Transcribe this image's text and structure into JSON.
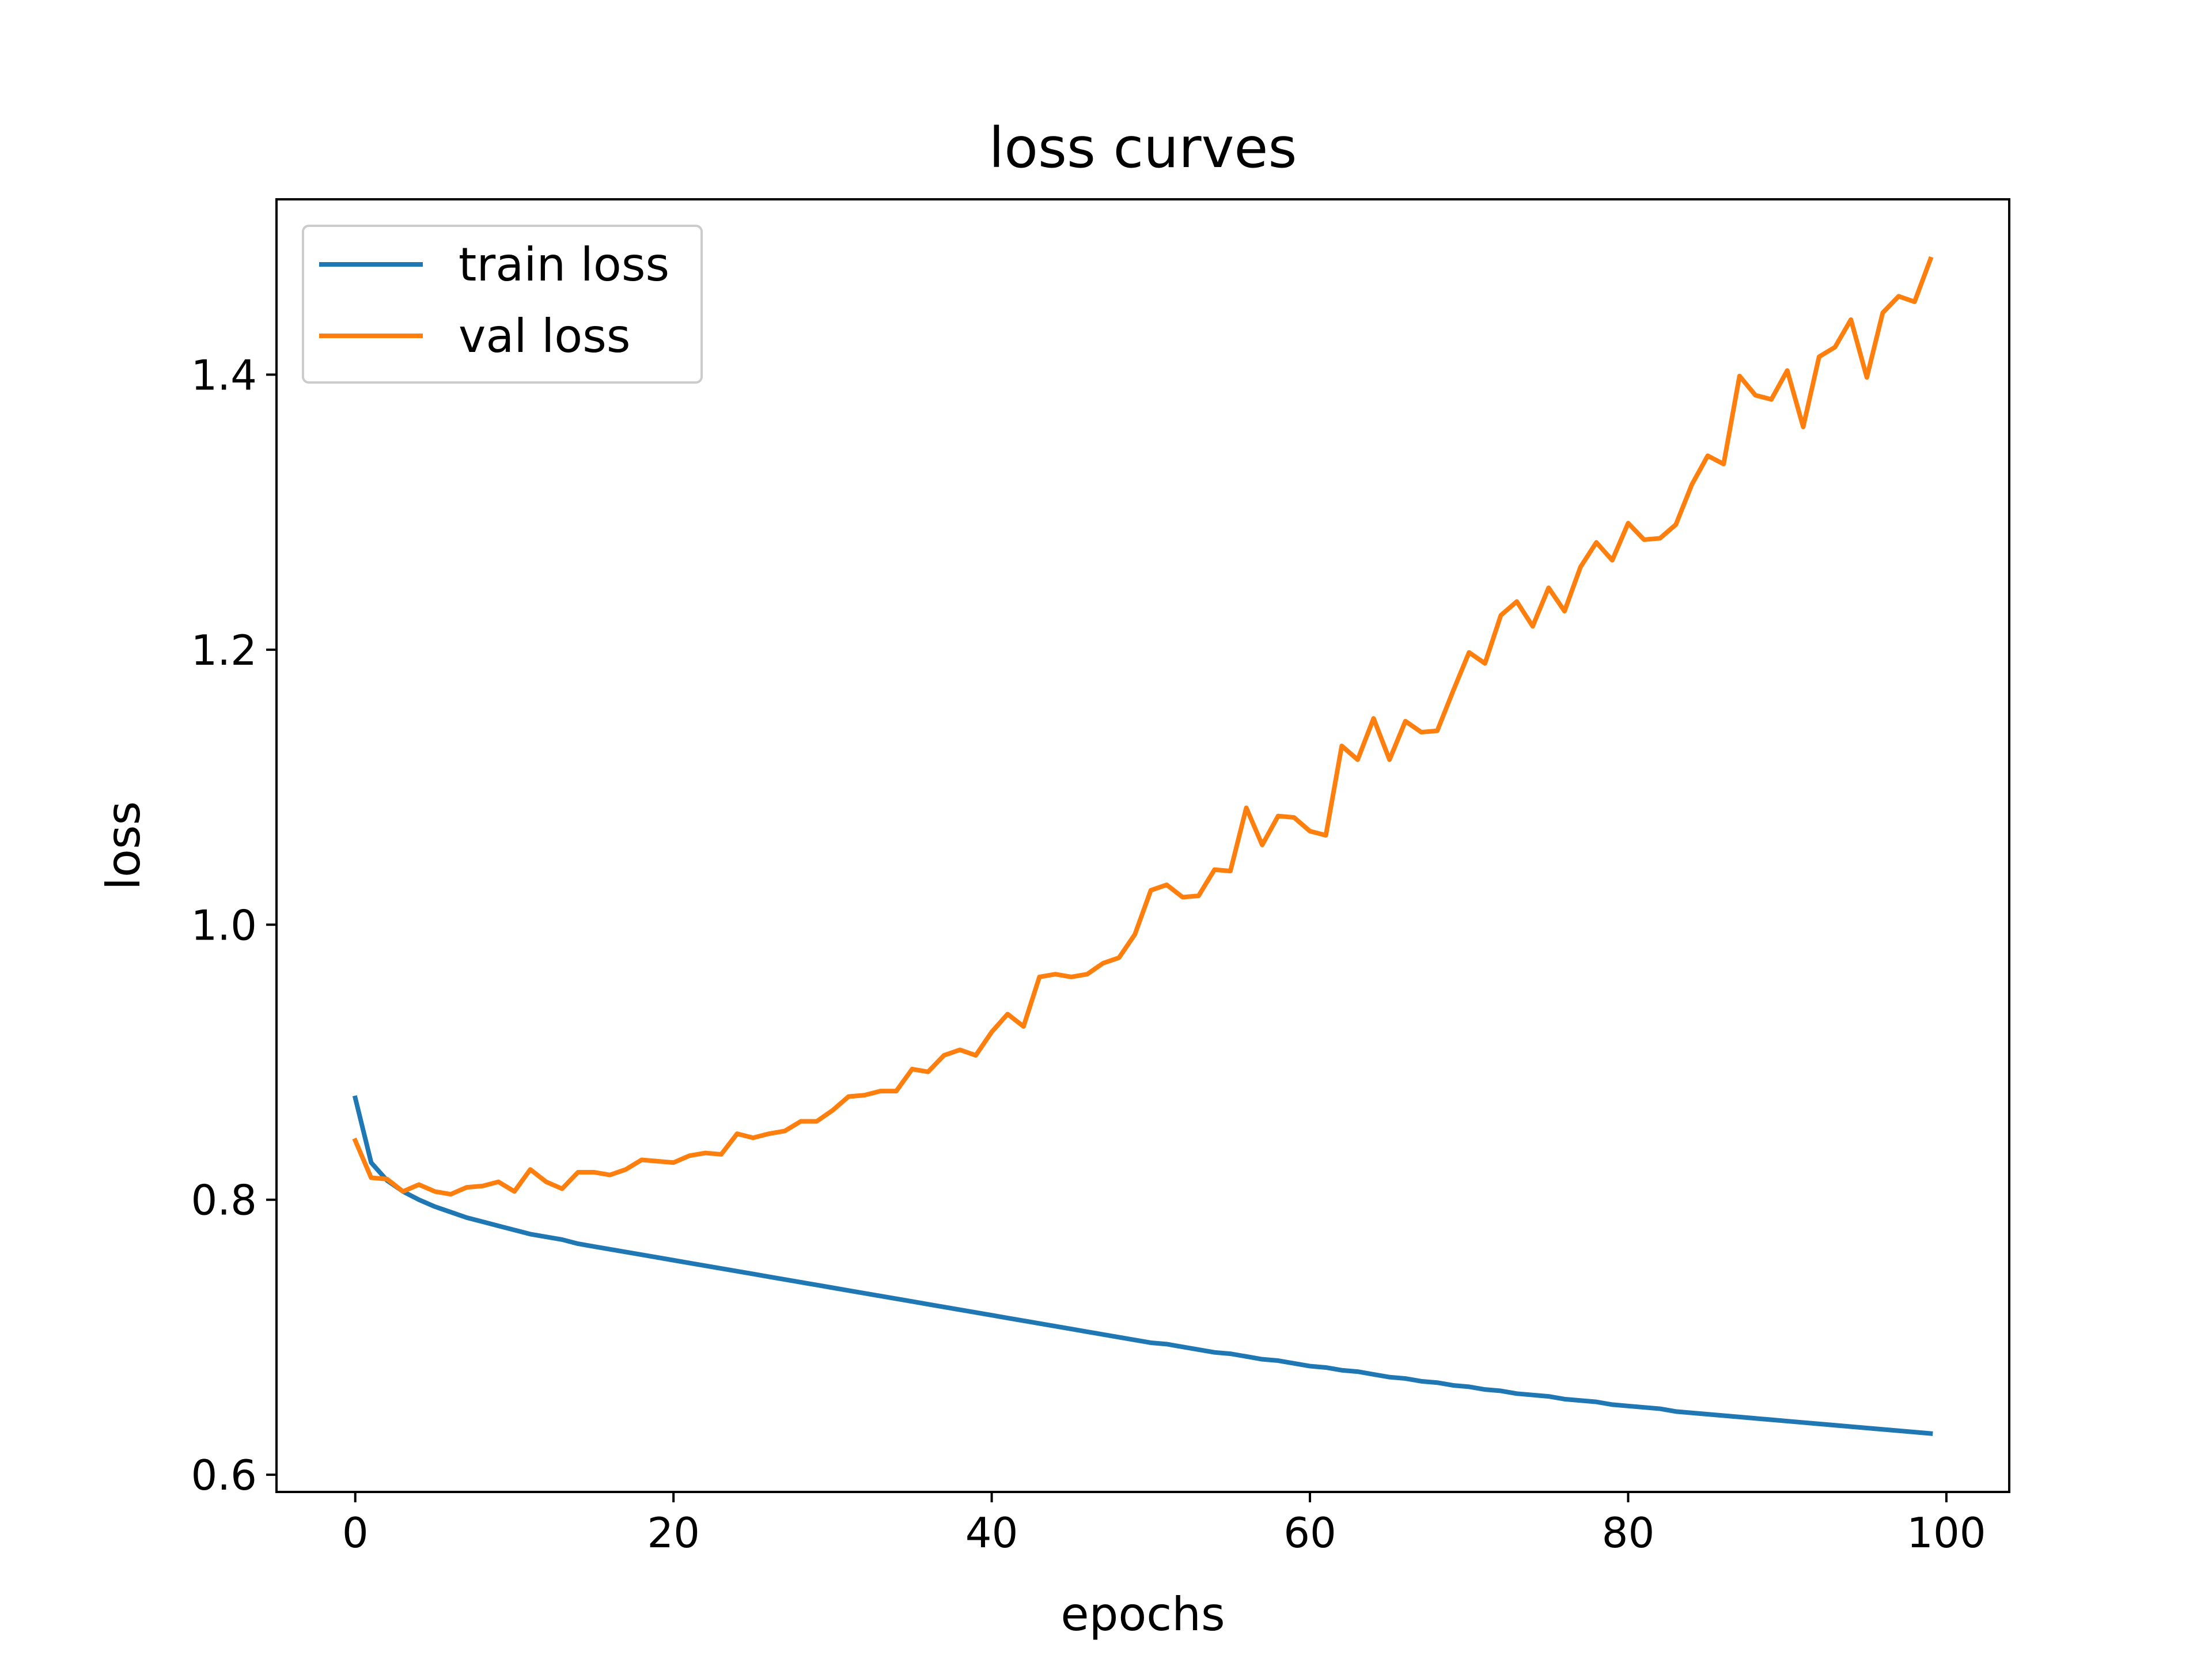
{
  "chart_data": {
    "type": "line",
    "title": "loss curves",
    "xlabel": "epochs",
    "ylabel": "loss",
    "xlim": [
      -4.95,
      103.95
    ],
    "ylim": [
      0.5875,
      1.5275
    ],
    "x_ticks": [
      0,
      20,
      40,
      60,
      80,
      100
    ],
    "y_ticks": [
      0.6,
      0.8,
      1.0,
      1.2,
      1.4
    ],
    "x_tick_labels": [
      "0",
      "20",
      "40",
      "60",
      "80",
      "100"
    ],
    "y_tick_labels": [
      "0.6",
      "0.8",
      "1.0",
      "1.2",
      "1.4"
    ],
    "grid": false,
    "legend_position": "upper-left",
    "x": [
      0,
      1,
      2,
      3,
      4,
      5,
      6,
      7,
      8,
      9,
      10,
      11,
      12,
      13,
      14,
      15,
      16,
      17,
      18,
      19,
      20,
      21,
      22,
      23,
      24,
      25,
      26,
      27,
      28,
      29,
      30,
      31,
      32,
      33,
      34,
      35,
      36,
      37,
      38,
      39,
      40,
      41,
      42,
      43,
      44,
      45,
      46,
      47,
      48,
      49,
      50,
      51,
      52,
      53,
      54,
      55,
      56,
      57,
      58,
      59,
      60,
      61,
      62,
      63,
      64,
      65,
      66,
      67,
      68,
      69,
      70,
      71,
      72,
      73,
      74,
      75,
      76,
      77,
      78,
      79,
      80,
      81,
      82,
      83,
      84,
      85,
      86,
      87,
      88,
      89,
      90,
      91,
      92,
      93,
      94,
      95,
      96,
      97,
      98,
      99
    ],
    "series": [
      {
        "name": "train loss",
        "color": "#1f77b4",
        "values": [
          0.874,
          0.827,
          0.814,
          0.806,
          0.8,
          0.795,
          0.791,
          0.787,
          0.784,
          0.781,
          0.778,
          0.775,
          0.773,
          0.771,
          0.768,
          0.766,
          0.764,
          0.762,
          0.76,
          0.758,
          0.756,
          0.754,
          0.752,
          0.75,
          0.748,
          0.746,
          0.744,
          0.742,
          0.74,
          0.738,
          0.736,
          0.734,
          0.732,
          0.73,
          0.728,
          0.726,
          0.724,
          0.722,
          0.72,
          0.718,
          0.716,
          0.714,
          0.712,
          0.71,
          0.708,
          0.706,
          0.704,
          0.702,
          0.7,
          0.698,
          0.696,
          0.695,
          0.693,
          0.691,
          0.689,
          0.688,
          0.686,
          0.684,
          0.683,
          0.681,
          0.679,
          0.678,
          0.676,
          0.675,
          0.673,
          0.671,
          0.67,
          0.668,
          0.667,
          0.665,
          0.664,
          0.662,
          0.661,
          0.659,
          0.658,
          0.657,
          0.655,
          0.654,
          0.653,
          0.651,
          0.65,
          0.649,
          0.648,
          0.646,
          0.645,
          0.644,
          0.643,
          0.642,
          0.641,
          0.64,
          0.639,
          0.638,
          0.637,
          0.636,
          0.635,
          0.634,
          0.633,
          0.632,
          0.631,
          0.63
        ]
      },
      {
        "name": "val loss",
        "color": "#ff7f0e",
        "values": [
          0.843,
          0.816,
          0.815,
          0.806,
          0.811,
          0.806,
          0.804,
          0.809,
          0.81,
          0.813,
          0.806,
          0.822,
          0.813,
          0.808,
          0.82,
          0.82,
          0.818,
          0.822,
          0.829,
          0.828,
          0.827,
          0.832,
          0.834,
          0.833,
          0.848,
          0.845,
          0.848,
          0.85,
          0.857,
          0.857,
          0.865,
          0.875,
          0.876,
          0.879,
          0.879,
          0.895,
          0.893,
          0.905,
          0.909,
          0.905,
          0.922,
          0.935,
          0.926,
          0.962,
          0.964,
          0.962,
          0.964,
          0.972,
          0.976,
          0.993,
          1.025,
          1.029,
          1.02,
          1.021,
          1.04,
          1.039,
          1.085,
          1.058,
          1.079,
          1.078,
          1.068,
          1.065,
          1.13,
          1.12,
          1.15,
          1.12,
          1.148,
          1.14,
          1.141,
          1.17,
          1.198,
          1.19,
          1.225,
          1.235,
          1.217,
          1.245,
          1.228,
          1.26,
          1.278,
          1.265,
          1.292,
          1.28,
          1.281,
          1.291,
          1.32,
          1.341,
          1.335,
          1.399,
          1.385,
          1.382,
          1.403,
          1.362,
          1.413,
          1.42,
          1.44,
          1.398,
          1.445,
          1.457,
          1.453,
          1.484
        ]
      }
    ]
  }
}
